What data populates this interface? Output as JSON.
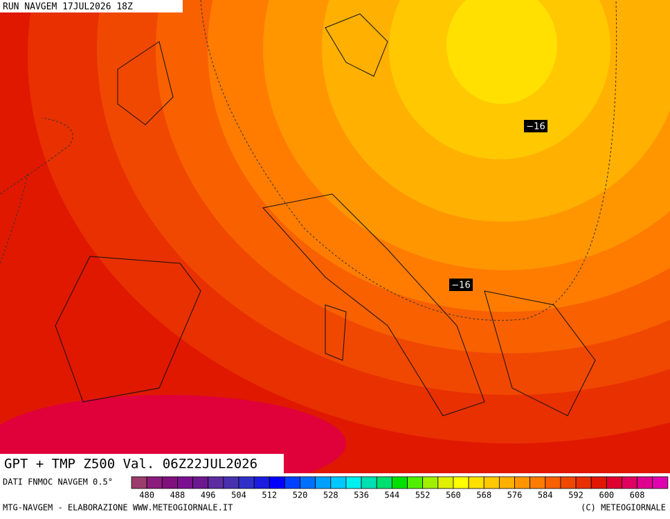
{
  "header": {
    "run": "RUN NAVGEM 17JUL2026 18Z"
  },
  "title": "GPT + TMP Z500 Val. 06Z22JUL2026",
  "labels": [
    "−16",
    "−16"
  ],
  "legend": {
    "source": "DATI FNMOC NAVGEM 0.5°",
    "ticks": [
      "480",
      "488",
      "496",
      "504",
      "512",
      "520",
      "528",
      "536",
      "544",
      "552",
      "560",
      "568",
      "576",
      "584",
      "592",
      "600",
      "608"
    ],
    "colors": [
      "#9c3c6c",
      "#8c1c7c",
      "#80107c",
      "#7a1090",
      "#6c1890",
      "#5c2ca0",
      "#4830b0",
      "#3030c8",
      "#1c1ce0",
      "#0000ff",
      "#0040ff",
      "#0070ff",
      "#00a0ff",
      "#00c8ff",
      "#00f0f0",
      "#00e0b0",
      "#00e070",
      "#00e000",
      "#50f000",
      "#a0f000",
      "#e0f000",
      "#ffff00",
      "#ffe000",
      "#ffc800",
      "#ffb000",
      "#ff9600",
      "#ff7c00",
      "#f86000",
      "#f04800",
      "#e83000",
      "#e01800",
      "#e00030",
      "#e00060",
      "#e00090",
      "#e000b0"
    ]
  },
  "footer": {
    "left": "MTG-NAVGEM - ELABORAZIONE WWW.METEOGIORNALE.IT",
    "right": "(C) METEOGIORNALE"
  }
}
